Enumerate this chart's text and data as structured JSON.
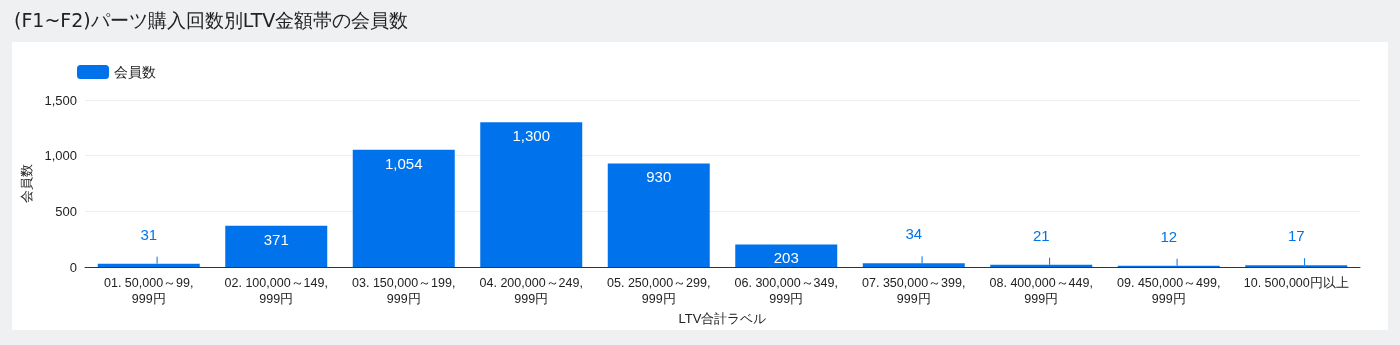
{
  "chart_data": {
    "type": "bar",
    "title": "(F1~F2)パーツ購入回数別LTV金額帯の会員数",
    "xlabel": "LTV合計ラベル",
    "ylabel": "会員数",
    "categories": [
      "01. 50,000～99,999円",
      "02. 100,000～149,999円",
      "03. 150,000～199,999円",
      "04. 200,000～249,999円",
      "05. 250,000～299,999円",
      "06. 300,000～349,999円",
      "07. 350,000～399,999円",
      "08. 400,000～449,999円",
      "09. 450,000～499,999円",
      "10. 500,000円以上"
    ],
    "series": [
      {
        "name": "会員数",
        "color": "#0073ec",
        "values": [
          31,
          371,
          1054,
          1300,
          930,
          203,
          34,
          21,
          12,
          17
        ],
        "value_labels": [
          "31",
          "371",
          "1,054",
          "1,300",
          "930",
          "203",
          "34",
          "21",
          "12",
          "17"
        ]
      }
    ],
    "ylim": [
      0,
      1500
    ],
    "yticks": [
      0,
      {
        "value": 500,
        "label": "500"
      },
      {
        "value": 1000,
        "label": "1,000"
      },
      {
        "value": 1500,
        "label": "1,500"
      }
    ],
    "grid": "y",
    "legend": "top left"
  }
}
